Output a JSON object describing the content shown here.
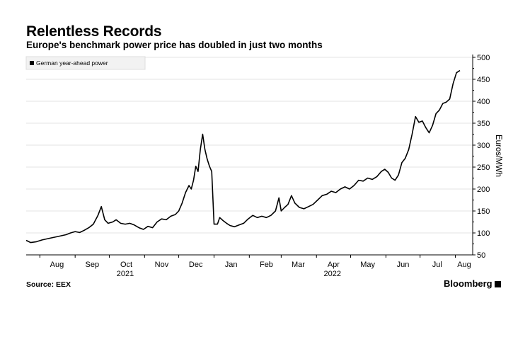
{
  "title": "Relentless Records",
  "subtitle": "Europe's benchmark power price has doubled in just two months",
  "source": "Source: EEX",
  "brand": "Bloomberg",
  "chart_data": {
    "type": "line",
    "legend": {
      "label": "German year-ahead power",
      "position": "top-left"
    },
    "ylabel": "Euros/MWh",
    "y_axis_side": "right",
    "ylim": [
      50,
      500
    ],
    "yticks": [
      50,
      100,
      150,
      200,
      250,
      300,
      350,
      400,
      450,
      500
    ],
    "ytick_labels": [
      "50",
      "100",
      "150",
      "200",
      "250",
      "300",
      "350",
      "400",
      "450",
      "500"
    ],
    "grid": "horizontal",
    "xlim": [
      "2021-08-01",
      "2022-08-10"
    ],
    "xticks": [
      {
        "label": "Aug",
        "date": "2021-08-01"
      },
      {
        "label": "Sep",
        "date": "2021-09-01"
      },
      {
        "label": "Oct",
        "date": "2021-10-01"
      },
      {
        "label": "Nov",
        "date": "2021-11-01"
      },
      {
        "label": "Dec",
        "date": "2021-12-01"
      },
      {
        "label": "Jan",
        "date": "2022-01-01"
      },
      {
        "label": "Feb",
        "date": "2022-02-01"
      },
      {
        "label": "Mar",
        "date": "2022-03-01"
      },
      {
        "label": "Apr",
        "date": "2022-04-01"
      },
      {
        "label": "May",
        "date": "2022-05-01"
      },
      {
        "label": "Jun",
        "date": "2022-06-01"
      },
      {
        "label": "Jul",
        "date": "2022-07-01"
      },
      {
        "label": "Aug",
        "date": "2022-08-01"
      }
    ],
    "year_labels": [
      {
        "label": "2021",
        "date": "2021-10-15"
      },
      {
        "label": "2022",
        "date": "2022-04-15"
      }
    ],
    "series": [
      {
        "name": "German year-ahead power",
        "color": "#000000",
        "points": [
          [
            "2021-07-20",
            83
          ],
          [
            "2021-07-24",
            78
          ],
          [
            "2021-07-29",
            80
          ],
          [
            "2021-08-03",
            84
          ],
          [
            "2021-08-10",
            88
          ],
          [
            "2021-08-17",
            92
          ],
          [
            "2021-08-24",
            96
          ],
          [
            "2021-08-28",
            100
          ],
          [
            "2021-09-01",
            103
          ],
          [
            "2021-09-05",
            101
          ],
          [
            "2021-09-09",
            106
          ],
          [
            "2021-09-13",
            112
          ],
          [
            "2021-09-17",
            120
          ],
          [
            "2021-09-21",
            140
          ],
          [
            "2021-09-24",
            160
          ],
          [
            "2021-09-27",
            130
          ],
          [
            "2021-09-30",
            122
          ],
          [
            "2021-10-04",
            125
          ],
          [
            "2021-10-07",
            130
          ],
          [
            "2021-10-11",
            122
          ],
          [
            "2021-10-15",
            120
          ],
          [
            "2021-10-19",
            122
          ],
          [
            "2021-10-23",
            118
          ],
          [
            "2021-10-27",
            112
          ],
          [
            "2021-10-31",
            108
          ],
          [
            "2021-11-04",
            115
          ],
          [
            "2021-11-08",
            112
          ],
          [
            "2021-11-12",
            125
          ],
          [
            "2021-11-16",
            132
          ],
          [
            "2021-11-20",
            130
          ],
          [
            "2021-11-24",
            138
          ],
          [
            "2021-11-28",
            142
          ],
          [
            "2021-12-01",
            150
          ],
          [
            "2021-12-04",
            168
          ],
          [
            "2021-12-07",
            192
          ],
          [
            "2021-12-10",
            208
          ],
          [
            "2021-12-12",
            200
          ],
          [
            "2021-12-14",
            220
          ],
          [
            "2021-12-16",
            252
          ],
          [
            "2021-12-18",
            240
          ],
          [
            "2021-12-20",
            290
          ],
          [
            "2021-12-22",
            325
          ],
          [
            "2021-12-24",
            290
          ],
          [
            "2021-12-26",
            268
          ],
          [
            "2021-12-28",
            252
          ],
          [
            "2021-12-30",
            240
          ],
          [
            "2022-01-01",
            120
          ],
          [
            "2022-01-04",
            120
          ],
          [
            "2022-01-06",
            135
          ],
          [
            "2022-01-09",
            128
          ],
          [
            "2022-01-12",
            122
          ],
          [
            "2022-01-15",
            117
          ],
          [
            "2022-01-19",
            114
          ],
          [
            "2022-01-23",
            118
          ],
          [
            "2022-01-27",
            122
          ],
          [
            "2022-01-31",
            132
          ],
          [
            "2022-02-04",
            140
          ],
          [
            "2022-02-08",
            135
          ],
          [
            "2022-02-12",
            138
          ],
          [
            "2022-02-16",
            135
          ],
          [
            "2022-02-20",
            140
          ],
          [
            "2022-02-24",
            150
          ],
          [
            "2022-02-27",
            180
          ],
          [
            "2022-03-01",
            150
          ],
          [
            "2022-03-04",
            158
          ],
          [
            "2022-03-07",
            165
          ],
          [
            "2022-03-10",
            185
          ],
          [
            "2022-03-13",
            168
          ],
          [
            "2022-03-17",
            158
          ],
          [
            "2022-03-21",
            155
          ],
          [
            "2022-03-25",
            160
          ],
          [
            "2022-03-29",
            165
          ],
          [
            "2022-04-02",
            175
          ],
          [
            "2022-04-06",
            185
          ],
          [
            "2022-04-10",
            188
          ],
          [
            "2022-04-14",
            195
          ],
          [
            "2022-04-18",
            192
          ],
          [
            "2022-04-22",
            200
          ],
          [
            "2022-04-26",
            205
          ],
          [
            "2022-04-30",
            200
          ],
          [
            "2022-05-04",
            208
          ],
          [
            "2022-05-08",
            220
          ],
          [
            "2022-05-12",
            218
          ],
          [
            "2022-05-16",
            225
          ],
          [
            "2022-05-20",
            222
          ],
          [
            "2022-05-24",
            228
          ],
          [
            "2022-05-28",
            240
          ],
          [
            "2022-05-31",
            245
          ],
          [
            "2022-06-03",
            238
          ],
          [
            "2022-06-06",
            225
          ],
          [
            "2022-06-09",
            220
          ],
          [
            "2022-06-12",
            232
          ],
          [
            "2022-06-15",
            260
          ],
          [
            "2022-06-18",
            270
          ],
          [
            "2022-06-21",
            290
          ],
          [
            "2022-06-24",
            325
          ],
          [
            "2022-06-27",
            365
          ],
          [
            "2022-06-30",
            352
          ],
          [
            "2022-07-03",
            355
          ],
          [
            "2022-07-06",
            340
          ],
          [
            "2022-07-09",
            328
          ],
          [
            "2022-07-12",
            345
          ],
          [
            "2022-07-15",
            372
          ],
          [
            "2022-07-18",
            380
          ],
          [
            "2022-07-21",
            395
          ],
          [
            "2022-07-24",
            398
          ],
          [
            "2022-07-27",
            405
          ],
          [
            "2022-07-30",
            440
          ],
          [
            "2022-08-02",
            465
          ],
          [
            "2022-08-05",
            470
          ]
        ]
      }
    ]
  }
}
